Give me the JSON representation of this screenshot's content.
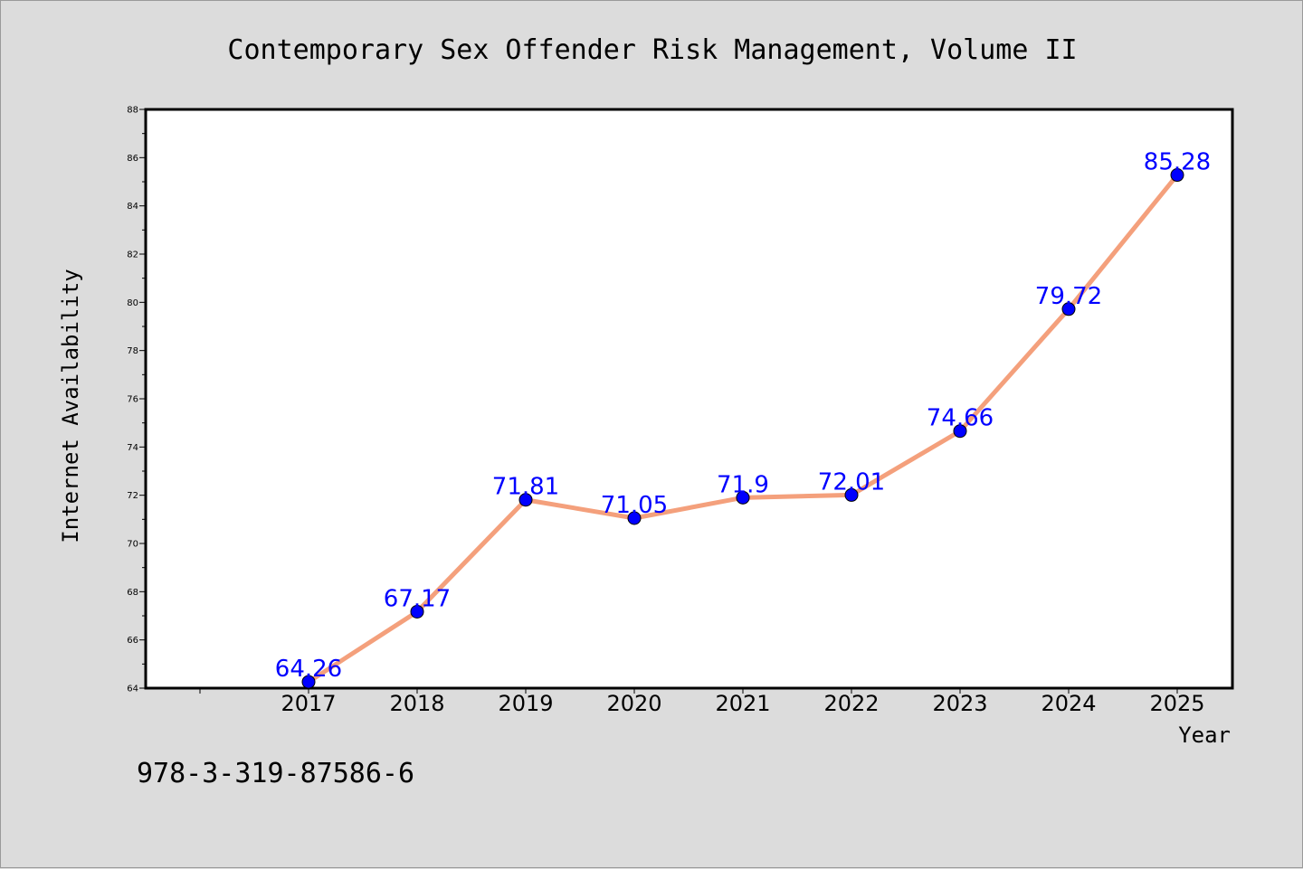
{
  "chart_data": {
    "type": "line",
    "title": "Contemporary Sex Offender Risk Management, Volume II",
    "xlabel": "Year",
    "ylabel": "Internet Availability",
    "categories": [
      "2017",
      "2018",
      "2019",
      "2020",
      "2021",
      "2022",
      "2023",
      "2024",
      "2025"
    ],
    "series": [
      {
        "values": [
          64.26,
          67.17,
          71.81,
          71.05,
          71.9,
          72.01,
          74.66,
          79.72,
          85.28
        ],
        "line_color": "#f4a07c",
        "marker_color": "#0000ff"
      }
    ],
    "data_labels": [
      "64.26",
      "67.17",
      "71.81",
      "71.05",
      "71.9",
      "72.01",
      "74.66",
      "79.72",
      "85.28"
    ],
    "ylim": [
      64,
      88
    ],
    "yticks": [
      "64",
      "66",
      "68",
      "70",
      "72",
      "74",
      "76",
      "78",
      "80",
      "82",
      "84",
      "86",
      "88"
    ],
    "grid": false,
    "legend": "none",
    "plot_background": "#ffffff",
    "label_color": "#0000ff"
  },
  "footer": {
    "isbn": "978-3-319-87586-6"
  }
}
